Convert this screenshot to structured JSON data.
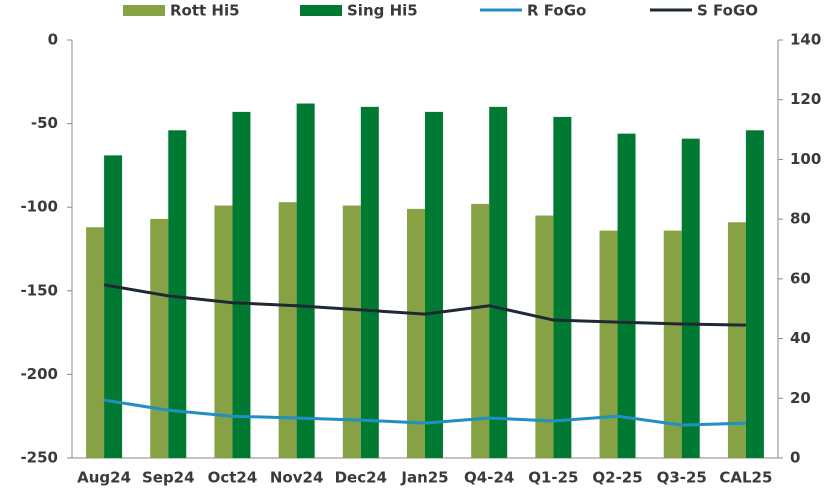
{
  "chart_data": {
    "type": "bar-line",
    "categories": [
      "Aug24",
      "Sep24",
      "Oct24",
      "Nov24",
      "Dec24",
      "Jan25",
      "Q4-24",
      "Q1-25",
      "Q2-25",
      "Q3-25",
      "CAL25"
    ],
    "series": [
      {
        "name": "Rott Hi5",
        "type": "bar",
        "color": "#86a244",
        "values": [
          -112,
          -107,
          -99,
          -97,
          -99,
          -101,
          -98,
          -105,
          -114,
          -114,
          -109
        ]
      },
      {
        "name": "Sing Hi5",
        "type": "bar",
        "color": "#007a33",
        "values": [
          -69,
          -54,
          -43,
          -38,
          -40,
          -43,
          -40,
          -46,
          -56,
          -59,
          -54
        ]
      },
      {
        "name": "R FoGo",
        "type": "line",
        "axis": "y2",
        "color": "#1f8fc4",
        "values": [
          19.4,
          16,
          14,
          13.4,
          12.7,
          11.7,
          13.4,
          12.4,
          14,
          11,
          11.7
        ]
      },
      {
        "name": "S FoGO",
        "type": "line",
        "axis": "y2",
        "color": "#1f2933",
        "values": [
          58,
          54.3,
          52,
          51,
          49.6,
          48.2,
          51,
          46.2,
          45.5,
          44.9,
          44.5
        ]
      }
    ],
    "ylim": [
      -250,
      0
    ],
    "yticks": [
      -250,
      -200,
      -150,
      -100,
      -50,
      0
    ],
    "y2lim": [
      0,
      140
    ],
    "y2ticks": [
      0,
      20,
      40,
      60,
      80,
      100,
      120,
      140
    ],
    "legend": "top"
  }
}
